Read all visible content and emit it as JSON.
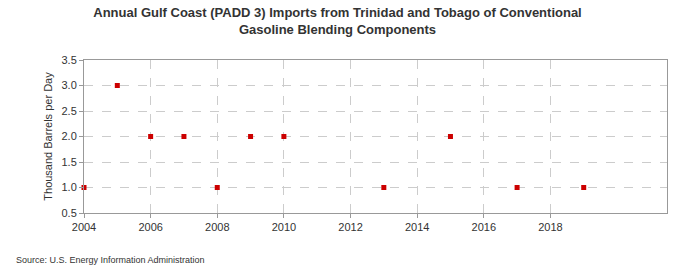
{
  "chart_data": {
    "type": "scatter",
    "title": "Annual Gulf Coast (PADD 3) Imports from Trinidad and Tobago of Conventional Gasoline Blending Components",
    "y_label": "Thousand Barrels per Day",
    "source": "Source: U.S. Energy Information Administration",
    "x": [
      2004,
      2005,
      2006,
      2007,
      2008,
      2009,
      2010,
      2013,
      2015,
      2017,
      2019
    ],
    "values": [
      1,
      3,
      2,
      2,
      1,
      2,
      2,
      1,
      2,
      1,
      1
    ],
    "color": "#cc0000",
    "marker": "square",
    "xlim": [
      2004,
      2021.5
    ],
    "xticks": [
      2004,
      2006,
      2008,
      2010,
      2012,
      2014,
      2016,
      2018
    ],
    "ylim": [
      0.5,
      3.5
    ],
    "yticks": [
      0.5,
      {
        "value": 1,
        "label": "1.0"
      },
      1.5,
      {
        "value": 2,
        "label": "2.0"
      },
      2.5,
      {
        "value": 3,
        "label": "3.0"
      },
      3.5
    ],
    "grid": true
  }
}
